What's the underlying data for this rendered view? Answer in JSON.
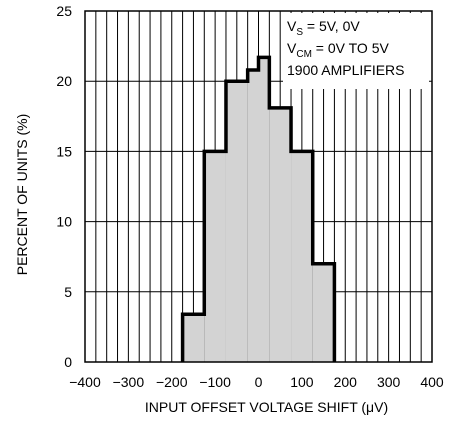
{
  "chart_data": {
    "type": "bar",
    "histogram": true,
    "xlabel": "INPUT OFFSET VOLTAGE SHIFT (μV)",
    "ylabel": "PERCENT OF UNITS (%)",
    "xlim": [
      -400,
      400
    ],
    "ylim": [
      0,
      25
    ],
    "xticks": [
      "−400",
      "−300",
      "−200",
      "−100",
      "0",
      "100",
      "200",
      "300",
      "400"
    ],
    "xtick_values": [
      -400,
      -300,
      -200,
      -100,
      0,
      100,
      200,
      300,
      400
    ],
    "yticks": [
      "0",
      "5",
      "10",
      "15",
      "20",
      "25"
    ],
    "ytick_values": [
      0,
      5,
      10,
      15,
      20,
      25
    ],
    "grid": true,
    "bins": [
      {
        "x0": -175,
        "x1": -125,
        "value": 3.4
      },
      {
        "x0": -125,
        "x1": -75,
        "value": 15
      },
      {
        "x0": -75,
        "x1": -25,
        "value": 20
      },
      {
        "x0": -25,
        "x1": 0,
        "value": 20.8
      },
      {
        "x0": 0,
        "x1": 25,
        "value": 21.7
      },
      {
        "x0": 25,
        "x1": 75,
        "value": 18.1
      },
      {
        "x0": 75,
        "x1": 125,
        "value": 15
      },
      {
        "x0": 125,
        "x1": 175,
        "value": 7
      }
    ],
    "annotations": [
      {
        "main": "V",
        "sub": "S",
        "rest": " = 5V, 0V"
      },
      {
        "main": "V",
        "sub": "CM",
        "rest": " = 0V TO 5V"
      },
      {
        "main": "1900 AMPLIFIERS",
        "sub": "",
        "rest": ""
      }
    ],
    "colors": {
      "fill": "#d3d3d3",
      "outline": "#000000",
      "grid": "#000000",
      "background": "#ffffff"
    }
  }
}
